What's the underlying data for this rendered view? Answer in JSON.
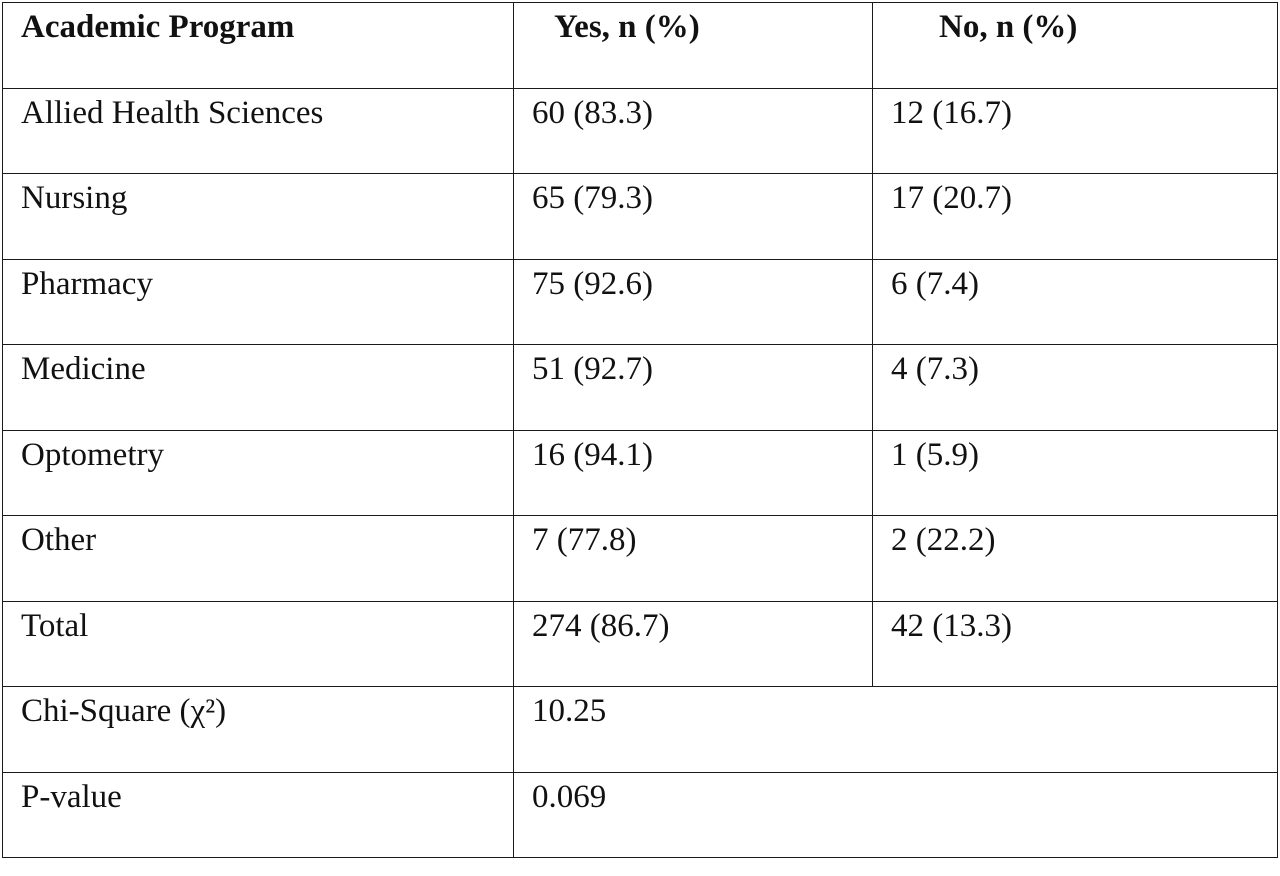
{
  "table": {
    "headers": [
      "Academic Program",
      "Yes, n (%)",
      "No, n (%)"
    ],
    "rows": [
      {
        "program": "Allied Health Sciences",
        "yes": "60 (83.3)",
        "no": "12 (16.7)"
      },
      {
        "program": "Nursing",
        "yes": "65 (79.3)",
        "no": "17 (20.7)"
      },
      {
        "program": "Pharmacy",
        "yes": "75 (92.6)",
        "no": "6 (7.4)"
      },
      {
        "program": "Medicine",
        "yes": "51 (92.7)",
        "no": "4 (7.3)"
      },
      {
        "program": "Optometry",
        "yes": "16 (94.1)",
        "no": "1 (5.9)"
      },
      {
        "program": "Other",
        "yes": "7 (77.8)",
        "no": "2 (22.2)"
      },
      {
        "program": "Total",
        "yes": "274 (86.7)",
        "no": "42 (13.3)"
      }
    ],
    "stats": [
      {
        "label": "Chi-Square (χ²)",
        "value": "10.25"
      },
      {
        "label": "P-value",
        "value": "0.069"
      }
    ]
  }
}
